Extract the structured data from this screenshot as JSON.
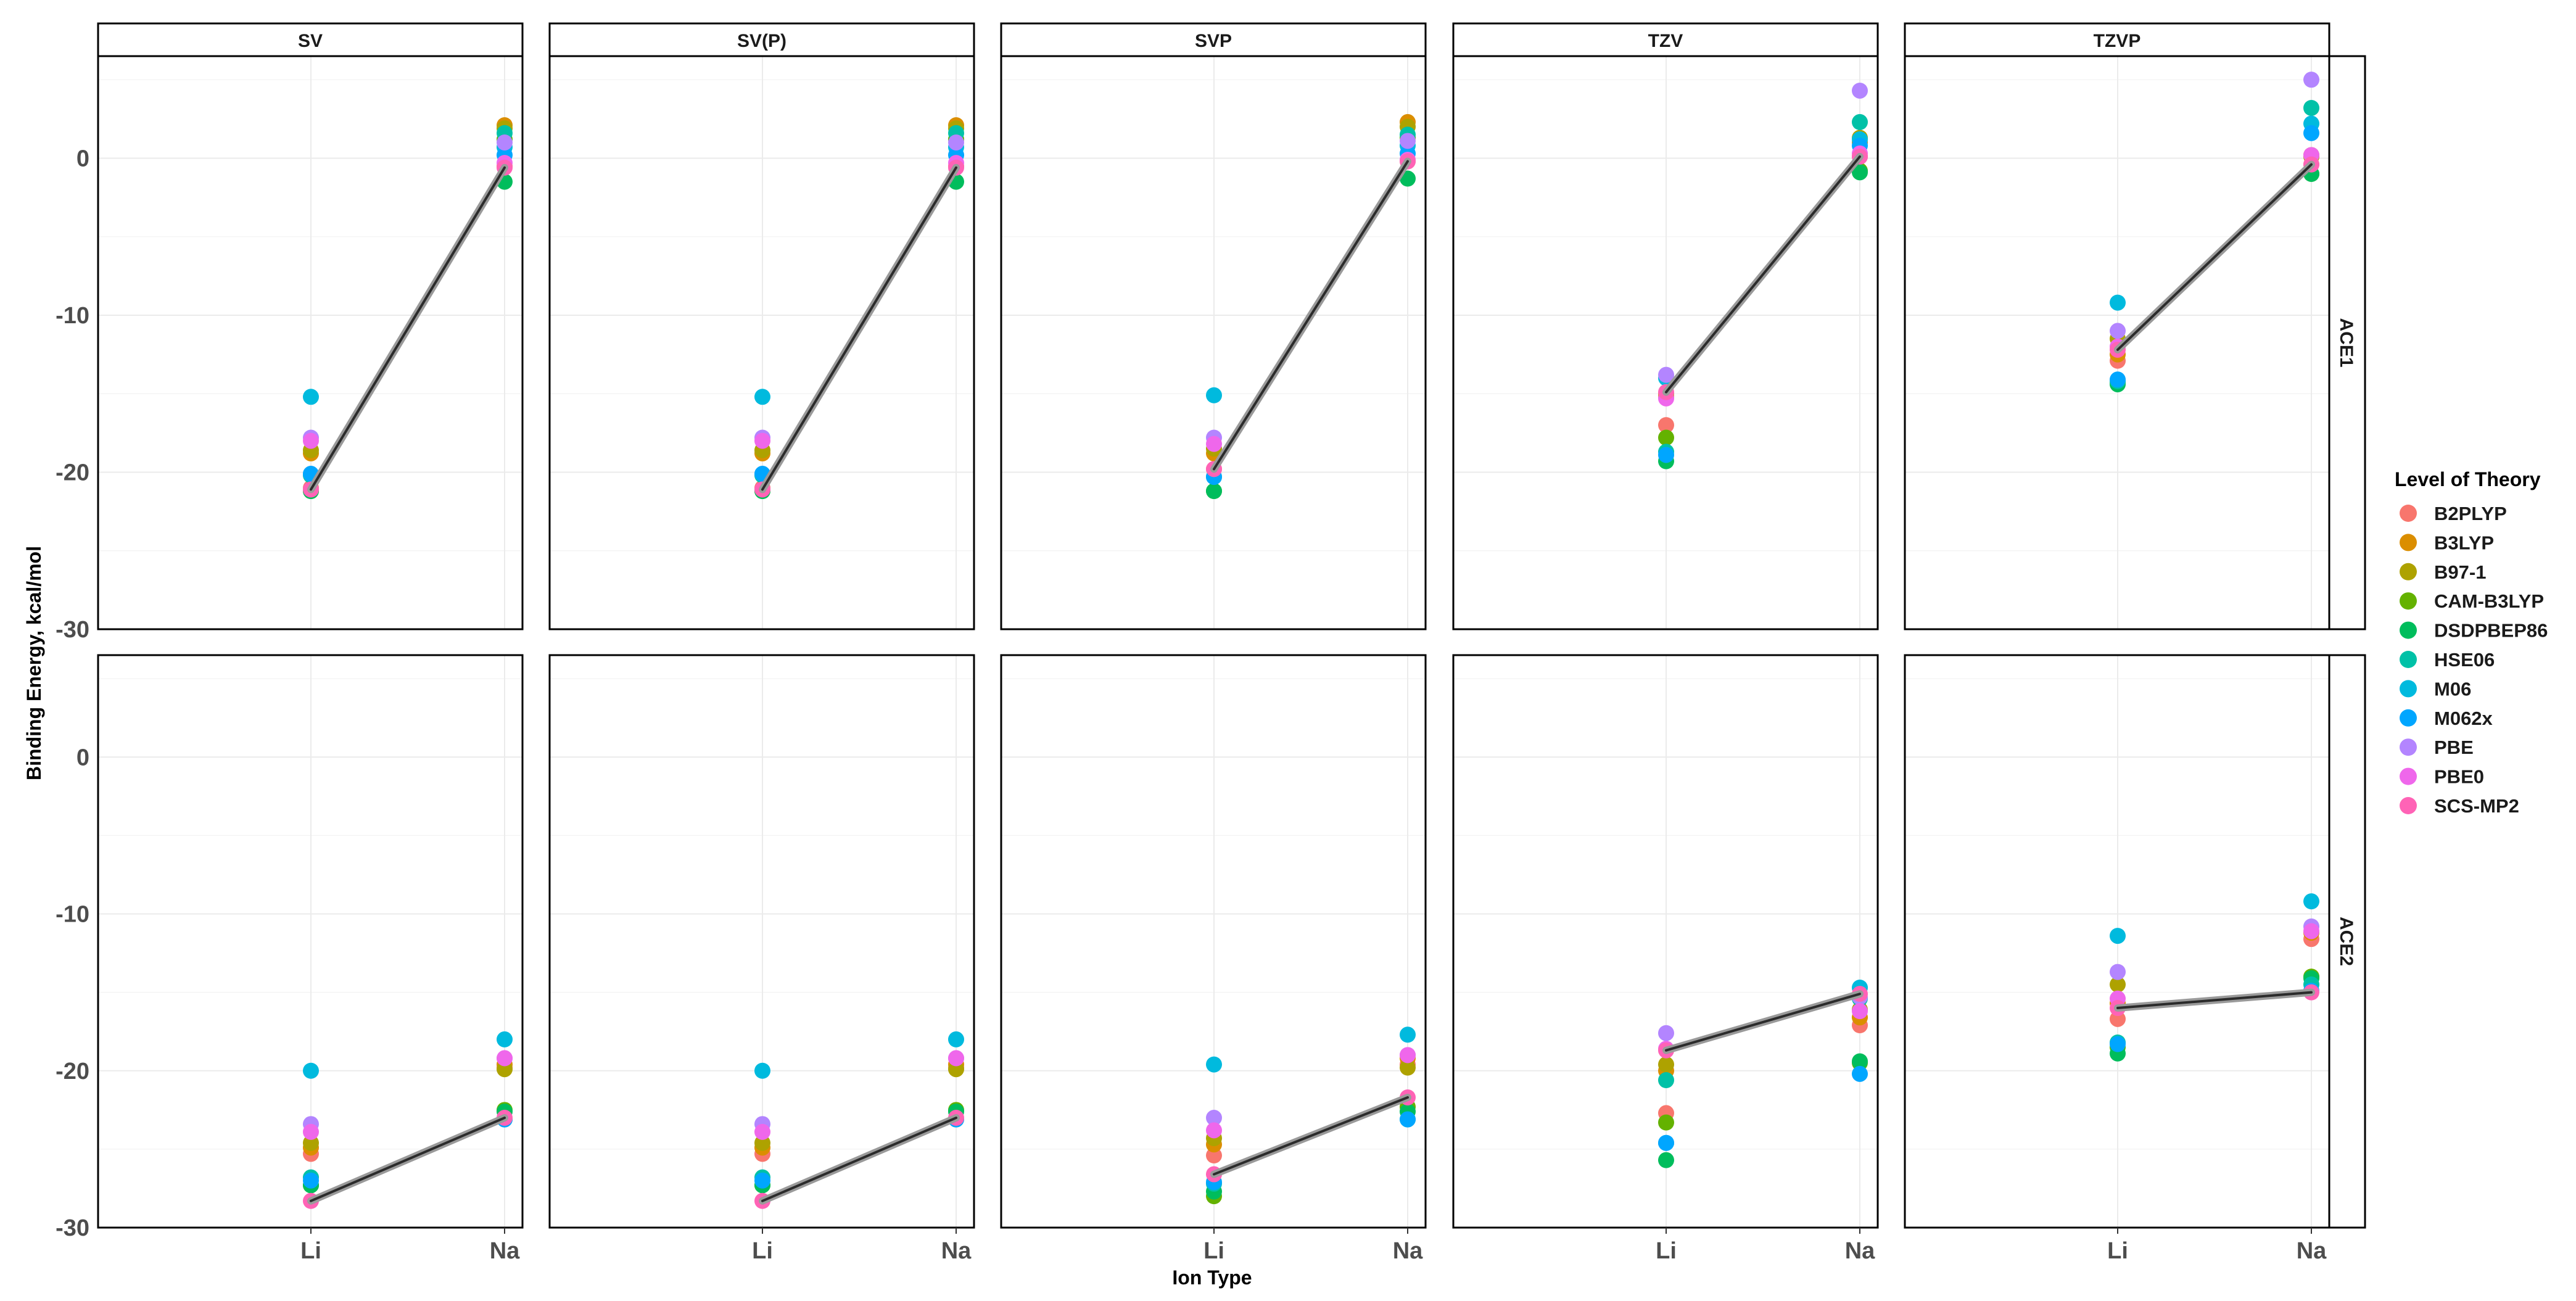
{
  "chart_data": {
    "type": "scatter",
    "facet_columns": [
      "SV",
      "SV(P)",
      "SVP",
      "TZV",
      "TZVP"
    ],
    "facet_rows": [
      "ACE1",
      "ACE2"
    ],
    "categories": [
      "Li",
      "Na"
    ],
    "xlabel": "Ion Type",
    "ylabel": "Binding Energy, kcal/mol",
    "y_ticks": [
      0,
      -10,
      -20,
      -30
    ],
    "ylim": [
      -30,
      6.5
    ],
    "legend": {
      "title": "Level of Theory",
      "position": "right",
      "entries": [
        "B2PLYP",
        "B3LYP",
        "B97-1",
        "CAM-B3LYP",
        "DSDPBEP86",
        "HSE06",
        "M06",
        "M062x",
        "PBE",
        "PBE0",
        "SCS-MP2"
      ]
    },
    "colors": {
      "B2PLYP": "#F8766D",
      "B3LYP": "#DB8E00",
      "B97-1": "#AEA200",
      "CAM-B3LYP": "#64B200",
      "DSDPBEP86": "#00BD5C",
      "HSE06": "#00C1A7",
      "M06": "#00BADE",
      "M062x": "#00A6FF",
      "PBE": "#B385FF",
      "PBE0": "#EF67EB",
      "SCS-MP2": "#FF63B6"
    },
    "line_series": "SCS-MP2",
    "series_order": [
      "B2PLYP",
      "B3LYP",
      "B97-1",
      "CAM-B3LYP",
      "DSDPBEP86",
      "HSE06",
      "M06",
      "M062x",
      "PBE",
      "PBE0",
      "SCS-MP2"
    ],
    "panels": [
      {
        "row": "ACE1",
        "col": "SV",
        "Li": [
          -21.0,
          -18.8,
          -18.6,
          -21.2,
          -21.2,
          -20.2,
          -15.2,
          -20.1,
          -17.8,
          -18.0,
          -21.1
        ],
        "Na": [
          -0.5,
          2.1,
          1.9,
          1.2,
          -1.5,
          1.6,
          0.7,
          0.2,
          1.0,
          -0.3,
          -0.6
        ]
      },
      {
        "row": "ACE1",
        "col": "SV(P)",
        "Li": [
          -21.0,
          -18.8,
          -18.6,
          -21.2,
          -21.2,
          -20.2,
          -15.2,
          -20.1,
          -17.8,
          -18.0,
          -21.1
        ],
        "Na": [
          -0.5,
          2.1,
          1.9,
          1.2,
          -1.5,
          1.6,
          0.7,
          0.2,
          1.0,
          -0.3,
          -0.6
        ]
      },
      {
        "row": "ACE1",
        "col": "SVP",
        "Li": [
          -19.8,
          -18.8,
          -18.5,
          -21.2,
          -21.2,
          -20.3,
          -15.1,
          -20.3,
          -17.8,
          -18.2,
          -19.8
        ],
        "Na": [
          -0.2,
          2.3,
          2.0,
          1.3,
          -1.3,
          1.5,
          0.8,
          0.3,
          1.1,
          -0.1,
          -0.2
        ]
      },
      {
        "row": "ACE1",
        "col": "TZV",
        "Li": [
          -17.0,
          -15.2,
          -15.0,
          -17.8,
          -19.3,
          -18.7,
          -14.0,
          -18.9,
          -13.8,
          -15.3,
          -14.9
        ],
        "Na": [
          0.1,
          1.0,
          1.3,
          -0.8,
          -0.9,
          2.3,
          1.2,
          0.8,
          4.3,
          0.3,
          0.1
        ]
      },
      {
        "row": "ACE1",
        "col": "TZVP",
        "Li": [
          -12.9,
          -12.5,
          -11.5,
          -14.3,
          -14.4,
          -14.2,
          -9.2,
          -14.1,
          -11.0,
          -12.0,
          -12.2
        ],
        "Na": [
          -0.4,
          0.2,
          0.1,
          -1.0,
          -1.0,
          3.2,
          2.2,
          1.6,
          5.0,
          0.2,
          -0.4
        ]
      },
      {
        "row": "ACE2",
        "col": "SV",
        "Li": [
          -25.3,
          -24.9,
          -24.6,
          -27.3,
          -27.3,
          -26.8,
          -20.0,
          -27.0,
          -23.4,
          -23.9,
          -28.3
        ],
        "Na": [
          -19.8,
          -19.6,
          -19.9,
          -22.5,
          -22.6,
          -23.1,
          -18.0,
          -23.1,
          -19.2,
          -19.2,
          -23.0
        ]
      },
      {
        "row": "ACE2",
        "col": "SV(P)",
        "Li": [
          -25.3,
          -24.9,
          -24.6,
          -27.3,
          -27.3,
          -26.8,
          -20.0,
          -27.0,
          -23.4,
          -23.9,
          -28.3
        ],
        "Na": [
          -19.8,
          -19.6,
          -19.9,
          -22.5,
          -22.6,
          -23.1,
          -18.0,
          -23.1,
          -19.2,
          -19.2,
          -23.0
        ]
      },
      {
        "row": "ACE2",
        "col": "SVP",
        "Li": [
          -25.4,
          -24.7,
          -24.3,
          -28.0,
          -27.7,
          -27.2,
          -19.6,
          -27.1,
          -23.0,
          -23.8,
          -26.6
        ],
        "Na": [
          -19.6,
          -19.2,
          -19.8,
          -22.3,
          -22.6,
          -23.1,
          -17.7,
          -23.1,
          -19.0,
          -19.0,
          -21.7
        ]
      },
      {
        "row": "ACE2",
        "col": "TZV",
        "Li": [
          -22.7,
          -20.0,
          -19.6,
          -23.3,
          -25.7,
          -20.6,
          -24.6,
          -24.6,
          -17.6,
          -18.6,
          -18.7
        ],
        "Na": [
          -17.1,
          -16.6,
          -16.1,
          -19.5,
          -19.4,
          -15.4,
          -14.7,
          -20.2,
          -15.3,
          -16.2,
          -15.1
        ]
      },
      {
        "row": "ACE2",
        "col": "TZVP",
        "Li": [
          -16.7,
          -15.7,
          -14.5,
          -18.5,
          -18.9,
          -18.2,
          -11.4,
          -18.3,
          -13.7,
          -15.4,
          -16.0
        ],
        "Na": [
          -11.6,
          -11.2,
          -14.0,
          -14.0,
          -14.1,
          -14.5,
          -9.2,
          -14.9,
          -10.8,
          -11.1,
          -15.0
        ]
      }
    ]
  }
}
